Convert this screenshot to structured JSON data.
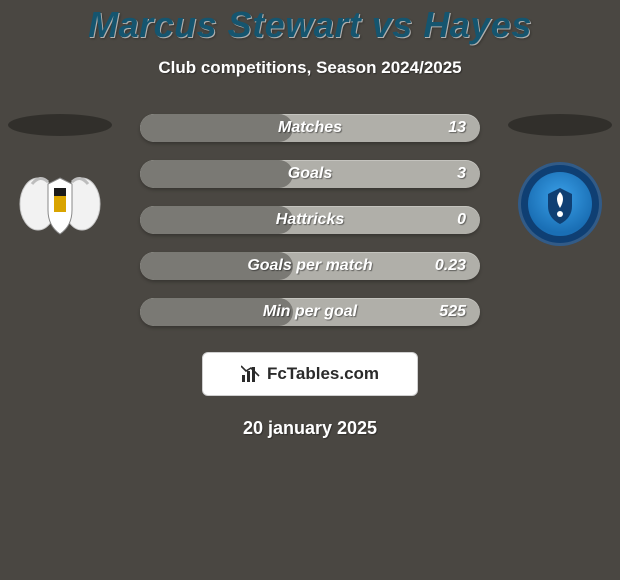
{
  "colors": {
    "page_bg": "#4a4742",
    "title_color": "#15556f",
    "subtitle_color": "#ffffff",
    "row_bg": "#b0afa9",
    "row_fill": "#7a7974",
    "label_color": "#ffffff",
    "value_color": "#ffffff",
    "ellipse_bg": "#2f2e2a",
    "brand_bg": "#ffffff",
    "brand_border": "#cfcfcf",
    "brand_text": "#2b2b2b",
    "footer_color": "#ffffff",
    "crest_right_ring": "#0f3f73",
    "crest_left_body": "#f2f2f2",
    "crest_left_shield": "#d9a400"
  },
  "typography": {
    "title_fontsize": 36,
    "subtitle_fontsize": 17,
    "row_label_fontsize": 16,
    "row_value_fontsize": 16,
    "brand_fontsize": 17,
    "footer_fontsize": 18
  },
  "title": "Marcus Stewart vs Hayes",
  "subtitle": "Club competitions, Season 2024/2025",
  "stats": [
    {
      "label": "Matches",
      "value": "13",
      "fill_pct": 45
    },
    {
      "label": "Goals",
      "value": "3",
      "fill_pct": 45
    },
    {
      "label": "Hattricks",
      "value": "0",
      "fill_pct": 45
    },
    {
      "label": "Goals per match",
      "value": "0.23",
      "fill_pct": 45
    },
    {
      "label": "Min per goal",
      "value": "525",
      "fill_pct": 45
    }
  ],
  "brand": {
    "icon_name": "bar-chart-icon",
    "text": "FcTables.com"
  },
  "footer_date": "20 january 2025",
  "left_team": {
    "name": "left-team"
  },
  "right_team": {
    "name": "right-team"
  }
}
